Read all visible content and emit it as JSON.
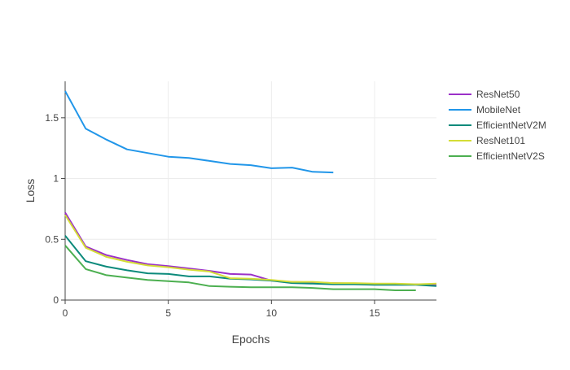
{
  "chart_data": {
    "type": "line",
    "title": "",
    "xlabel": "Epochs",
    "ylabel": "Loss",
    "xlim": [
      0,
      18
    ],
    "ylim": [
      0,
      1.8
    ],
    "x_ticks": [
      0,
      5,
      10,
      15
    ],
    "x_tick_labels": [
      "0",
      "5",
      "10",
      "15"
    ],
    "y_ticks": [
      0,
      0.5,
      1,
      1.5
    ],
    "y_tick_labels": [
      "0",
      "0.5",
      "1",
      "1.5"
    ],
    "grid": true,
    "legend_position": "top-right",
    "series": [
      {
        "name": "ResNet50",
        "color": "#9b30c8",
        "x": [
          0,
          1,
          2,
          3,
          4,
          5,
          6,
          7,
          8,
          9,
          10,
          11,
          12,
          13,
          14,
          15,
          16,
          17,
          18
        ],
        "values": [
          0.72,
          0.44,
          0.37,
          0.33,
          0.295,
          0.28,
          0.26,
          0.24,
          0.215,
          0.21,
          0.16,
          0.15,
          0.145,
          0.14,
          0.135,
          0.13,
          0.13,
          0.13,
          0.13
        ]
      },
      {
        "name": "MobileNet",
        "color": "#2196e9",
        "x": [
          0,
          1,
          2,
          3,
          4,
          5,
          6,
          7,
          8,
          9,
          10,
          11,
          12,
          13
        ],
        "values": [
          1.72,
          1.41,
          1.32,
          1.24,
          1.21,
          1.18,
          1.17,
          1.145,
          1.12,
          1.11,
          1.085,
          1.09,
          1.055,
          1.05
        ]
      },
      {
        "name": "EfficientNetV2M",
        "color": "#0c8a7b",
        "x": [
          0,
          1,
          2,
          3,
          4,
          5,
          6,
          7,
          8,
          9,
          10,
          11,
          12,
          13,
          14,
          15,
          16,
          17,
          18
        ],
        "values": [
          0.53,
          0.32,
          0.275,
          0.245,
          0.22,
          0.215,
          0.195,
          0.195,
          0.175,
          0.17,
          0.16,
          0.14,
          0.135,
          0.13,
          0.13,
          0.125,
          0.125,
          0.125,
          0.115
        ]
      },
      {
        "name": "ResNet101",
        "color": "#d4dd36",
        "x": [
          0,
          1,
          2,
          3,
          4,
          5,
          6,
          7,
          8,
          9,
          10,
          11,
          12,
          13,
          14,
          15,
          16,
          17,
          18
        ],
        "values": [
          0.7,
          0.43,
          0.355,
          0.315,
          0.285,
          0.27,
          0.25,
          0.235,
          0.18,
          0.175,
          0.165,
          0.15,
          0.15,
          0.14,
          0.14,
          0.135,
          0.135,
          0.13,
          0.135
        ]
      },
      {
        "name": "EfficientNetV2S",
        "color": "#4caf50",
        "x": [
          0,
          1,
          2,
          3,
          4,
          5,
          6,
          7,
          8,
          9,
          10,
          11,
          12,
          13,
          14,
          15,
          16,
          17
        ],
        "values": [
          0.45,
          0.255,
          0.205,
          0.185,
          0.165,
          0.155,
          0.145,
          0.115,
          0.11,
          0.105,
          0.105,
          0.105,
          0.1,
          0.09,
          0.09,
          0.09,
          0.08,
          0.08
        ]
      }
    ]
  }
}
